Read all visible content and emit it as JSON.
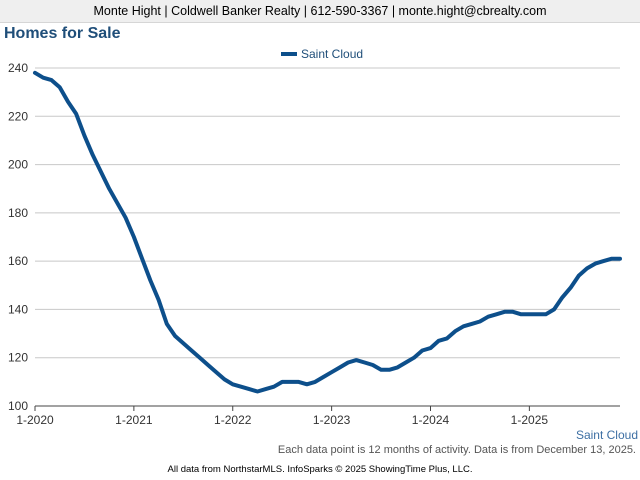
{
  "header": {
    "contact": "Monte Hight | Coldwell Banker Realty | 612-590-3367 | monte.hight@cbrealty.com"
  },
  "footer": {
    "note": "Each data point is 12 months of activity. Data is from December 13, 2025.",
    "credit": "All data from NorthstarMLS. InfoSparks © 2025 ShowingTime Plus, LLC."
  },
  "colors": {
    "series": "#0d4f8b",
    "title": "#1f4e79",
    "grid": "#c8c8c8"
  },
  "chart_data": {
    "type": "line",
    "title": "Homes for Sale",
    "legend_position": "top",
    "grid": true,
    "ylim": [
      100,
      240
    ],
    "yticks": [
      100,
      120,
      140,
      160,
      180,
      200,
      220,
      240
    ],
    "xlim": [
      "2020-01",
      "2025-12"
    ],
    "xticks": [
      {
        "label": "1-2020",
        "date": "2020-01"
      },
      {
        "label": "1-2021",
        "date": "2021-01"
      },
      {
        "label": "1-2022",
        "date": "2022-01"
      },
      {
        "label": "1-2023",
        "date": "2023-01"
      },
      {
        "label": "1-2024",
        "date": "2024-01"
      },
      {
        "label": "1-2025",
        "date": "2025-01"
      }
    ],
    "series_end_label": "Saint Cloud",
    "series": [
      {
        "name": "Saint Cloud",
        "x": [
          "2020-01",
          "2020-02",
          "2020-03",
          "2020-04",
          "2020-05",
          "2020-06",
          "2020-07",
          "2020-08",
          "2020-09",
          "2020-10",
          "2020-11",
          "2020-12",
          "2021-01",
          "2021-02",
          "2021-03",
          "2021-04",
          "2021-05",
          "2021-06",
          "2021-07",
          "2021-08",
          "2021-09",
          "2021-10",
          "2021-11",
          "2021-12",
          "2022-01",
          "2022-02",
          "2022-03",
          "2022-04",
          "2022-05",
          "2022-06",
          "2022-07",
          "2022-08",
          "2022-09",
          "2022-10",
          "2022-11",
          "2022-12",
          "2023-01",
          "2023-02",
          "2023-03",
          "2023-04",
          "2023-05",
          "2023-06",
          "2023-07",
          "2023-08",
          "2023-09",
          "2023-10",
          "2023-11",
          "2023-12",
          "2024-01",
          "2024-02",
          "2024-03",
          "2024-04",
          "2024-05",
          "2024-06",
          "2024-07",
          "2024-08",
          "2024-09",
          "2024-10",
          "2024-11",
          "2024-12",
          "2025-01",
          "2025-02",
          "2025-03",
          "2025-04",
          "2025-05",
          "2025-06",
          "2025-07",
          "2025-08",
          "2025-09",
          "2025-10",
          "2025-11",
          "2025-12"
        ],
        "values": [
          238,
          236,
          235,
          232,
          226,
          221,
          212,
          204,
          197,
          190,
          184,
          178,
          170,
          161,
          152,
          144,
          134,
          129,
          126,
          123,
          120,
          117,
          114,
          111,
          109,
          108,
          107,
          106,
          107,
          108,
          110,
          110,
          110,
          109,
          110,
          112,
          114,
          116,
          118,
          119,
          118,
          117,
          115,
          115,
          116,
          118,
          120,
          123,
          124,
          127,
          128,
          131,
          133,
          134,
          135,
          137,
          138,
          139,
          139,
          138,
          138,
          138,
          138,
          140,
          145,
          149,
          154,
          157,
          159,
          160,
          161,
          161
        ]
      }
    ]
  }
}
